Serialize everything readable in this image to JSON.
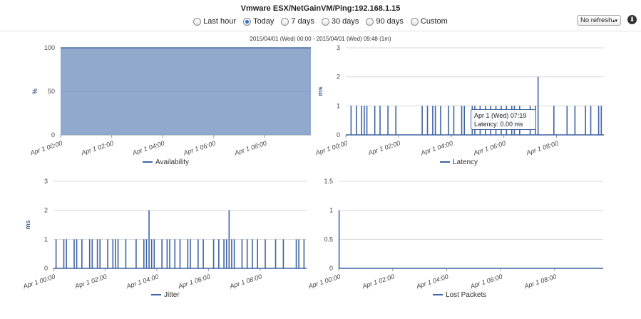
{
  "title": "Vmware ESX/NetGainVM/Ping:192.168.1.15",
  "range_options": [
    {
      "label": "Last hour",
      "selected": false
    },
    {
      "label": "Today",
      "selected": true
    },
    {
      "label": "7 days",
      "selected": false
    },
    {
      "label": "30 days",
      "selected": false
    },
    {
      "label": "90 days",
      "selected": false
    },
    {
      "label": "Custom",
      "selected": false
    }
  ],
  "refresh": {
    "value": "No refresh"
  },
  "download_icon": "download-icon",
  "subtitle": "2015/04/01 (Wed) 00:00 - 2015/04/01 (Wed) 09:48 (1m)",
  "colors": {
    "series": "#3f64a4",
    "area_fill": "#91a9cc",
    "grid": "#d8d8d8"
  },
  "tooltip": {
    "line1": "Apr 1 (Wed) 07:19",
    "line2": "Latency: 0.00 ms"
  },
  "chart_data": [
    {
      "type": "area",
      "legend": "Availability",
      "ylabel": "%",
      "ylim": [
        0,
        100
      ],
      "yticks": [
        "0",
        "50",
        "100"
      ],
      "xticks": [
        "Apr 1 00:00",
        "Apr 1 02:00",
        "Apr 1 04:00",
        "Apr 1 06:00",
        "Apr 1 08:00"
      ],
      "xrange_minutes": [
        0,
        588
      ],
      "series": [
        {
          "x": [
            0,
            588
          ],
          "values": [
            100,
            100
          ]
        }
      ]
    },
    {
      "type": "line",
      "legend": "Latency",
      "ylabel": "ms",
      "ylim": [
        0,
        3
      ],
      "yticks": [
        "0",
        "1",
        "2",
        "3"
      ],
      "xticks": [
        "Apr 1 00:00",
        "Apr 1 02:00",
        "Apr 1 04:00",
        "Apr 1 06:00",
        "Apr 1 08:00"
      ],
      "xrange_minutes": [
        0,
        588
      ],
      "spikes": [
        {
          "t": 12,
          "v": 1
        },
        {
          "t": 24,
          "v": 1
        },
        {
          "t": 36,
          "v": 1
        },
        {
          "t": 42,
          "v": 1
        },
        {
          "t": 48,
          "v": 1
        },
        {
          "t": 66,
          "v": 1
        },
        {
          "t": 78,
          "v": 1
        },
        {
          "t": 96,
          "v": 1
        },
        {
          "t": 114,
          "v": 1
        },
        {
          "t": 174,
          "v": 1
        },
        {
          "t": 186,
          "v": 1
        },
        {
          "t": 198,
          "v": 1
        },
        {
          "t": 204,
          "v": 1
        },
        {
          "t": 216,
          "v": 1
        },
        {
          "t": 234,
          "v": 1
        },
        {
          "t": 246,
          "v": 1
        },
        {
          "t": 264,
          "v": 1
        },
        {
          "t": 270,
          "v": 1
        },
        {
          "t": 288,
          "v": 1
        },
        {
          "t": 294,
          "v": 1
        },
        {
          "t": 306,
          "v": 1
        },
        {
          "t": 318,
          "v": 1
        },
        {
          "t": 330,
          "v": 1
        },
        {
          "t": 342,
          "v": 1
        },
        {
          "t": 354,
          "v": 1
        },
        {
          "t": 366,
          "v": 1
        },
        {
          "t": 378,
          "v": 1
        },
        {
          "t": 384,
          "v": 1
        },
        {
          "t": 396,
          "v": 1
        },
        {
          "t": 420,
          "v": 1
        },
        {
          "t": 432,
          "v": 1
        },
        {
          "t": 438,
          "v": 2
        },
        {
          "t": 474,
          "v": 1
        },
        {
          "t": 504,
          "v": 1
        },
        {
          "t": 522,
          "v": 1
        },
        {
          "t": 546,
          "v": 1
        },
        {
          "t": 558,
          "v": 1
        },
        {
          "t": 576,
          "v": 1
        },
        {
          "t": 582,
          "v": 1
        }
      ]
    },
    {
      "type": "line",
      "legend": "Jitter",
      "ylabel": "ms",
      "ylim": [
        0,
        3
      ],
      "yticks": [
        "0",
        "1",
        "2",
        "3"
      ],
      "xticks": [
        "Apr 1 00:00",
        "Apr 1 02:00",
        "Apr 1 04:00",
        "Apr 1 06:00",
        "Apr 1 08:00"
      ],
      "xrange_minutes": [
        0,
        588
      ],
      "spikes": [
        {
          "t": 6,
          "v": 1
        },
        {
          "t": 24,
          "v": 1
        },
        {
          "t": 30,
          "v": 1
        },
        {
          "t": 48,
          "v": 1
        },
        {
          "t": 54,
          "v": 1
        },
        {
          "t": 66,
          "v": 1
        },
        {
          "t": 84,
          "v": 1
        },
        {
          "t": 90,
          "v": 1
        },
        {
          "t": 102,
          "v": 1
        },
        {
          "t": 108,
          "v": 1
        },
        {
          "t": 126,
          "v": 1
        },
        {
          "t": 138,
          "v": 1
        },
        {
          "t": 144,
          "v": 1
        },
        {
          "t": 150,
          "v": 1
        },
        {
          "t": 168,
          "v": 1
        },
        {
          "t": 192,
          "v": 1
        },
        {
          "t": 210,
          "v": 1
        },
        {
          "t": 216,
          "v": 1
        },
        {
          "t": 222,
          "v": 2
        },
        {
          "t": 228,
          "v": 1
        },
        {
          "t": 234,
          "v": 1
        },
        {
          "t": 252,
          "v": 1
        },
        {
          "t": 264,
          "v": 1
        },
        {
          "t": 270,
          "v": 1
        },
        {
          "t": 282,
          "v": 1
        },
        {
          "t": 294,
          "v": 1
        },
        {
          "t": 312,
          "v": 1
        },
        {
          "t": 318,
          "v": 1
        },
        {
          "t": 336,
          "v": 1
        },
        {
          "t": 348,
          "v": 1
        },
        {
          "t": 372,
          "v": 1
        },
        {
          "t": 384,
          "v": 1
        },
        {
          "t": 396,
          "v": 1
        },
        {
          "t": 402,
          "v": 1
        },
        {
          "t": 408,
          "v": 2
        },
        {
          "t": 414,
          "v": 1
        },
        {
          "t": 420,
          "v": 1
        },
        {
          "t": 438,
          "v": 1
        },
        {
          "t": 450,
          "v": 1
        },
        {
          "t": 462,
          "v": 1
        },
        {
          "t": 474,
          "v": 1
        },
        {
          "t": 492,
          "v": 1
        },
        {
          "t": 516,
          "v": 1
        },
        {
          "t": 534,
          "v": 1
        },
        {
          "t": 564,
          "v": 1
        },
        {
          "t": 570,
          "v": 1
        },
        {
          "t": 582,
          "v": 1
        }
      ]
    },
    {
      "type": "line",
      "legend": "Lost Packets",
      "ylabel": "",
      "ylim": [
        0,
        1.5
      ],
      "yticks": [
        "0",
        "0.5",
        "1",
        "1.5"
      ],
      "xticks": [
        "Apr 1 00:00",
        "Apr 1 02:00",
        "Apr 1 04:00",
        "Apr 1 06:00",
        "Apr 1 08:00"
      ],
      "xrange_minutes": [
        0,
        588
      ],
      "spikes": [
        {
          "t": 1,
          "v": 1
        }
      ]
    }
  ]
}
